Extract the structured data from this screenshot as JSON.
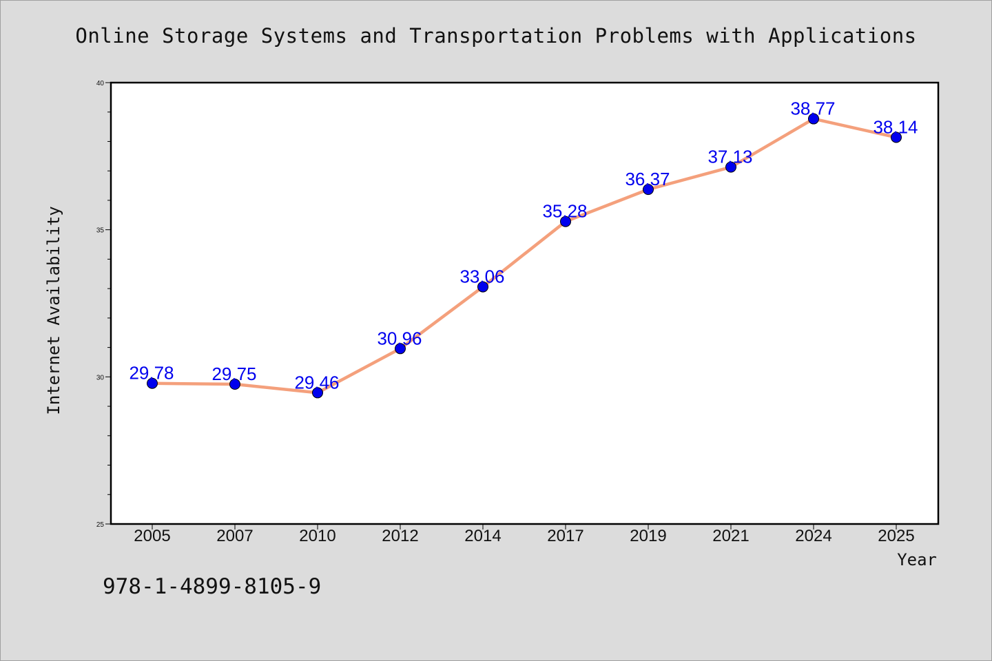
{
  "chart_data": {
    "type": "line",
    "title": "Online Storage Systems and Transportation Problems with Applications",
    "xlabel": "Year",
    "ylabel": "Internet Availability",
    "categories": [
      "2005",
      "2007",
      "2010",
      "2012",
      "2014",
      "2017",
      "2019",
      "2021",
      "2024",
      "2025"
    ],
    "series": [
      {
        "values": [
          29.78,
          29.75,
          29.46,
          30.96,
          33.06,
          35.28,
          36.37,
          37.13,
          38.77,
          38.14
        ]
      }
    ],
    "data_labels": [
      "29.78",
      "29.75",
      "29.46",
      "30.96",
      "33.06",
      "35.28",
      "36.37",
      "37.13",
      "38.77",
      "38.14"
    ],
    "ylim": [
      25,
      40
    ],
    "yticks": [
      "25",
      "30",
      "35",
      "40"
    ],
    "grid": false,
    "legend": "none",
    "colors": {
      "line": "#f4a07c",
      "marker": "#0000ee",
      "label": "#0000ee"
    }
  },
  "footer": {
    "isbn": "978-1-4899-8105-9"
  }
}
